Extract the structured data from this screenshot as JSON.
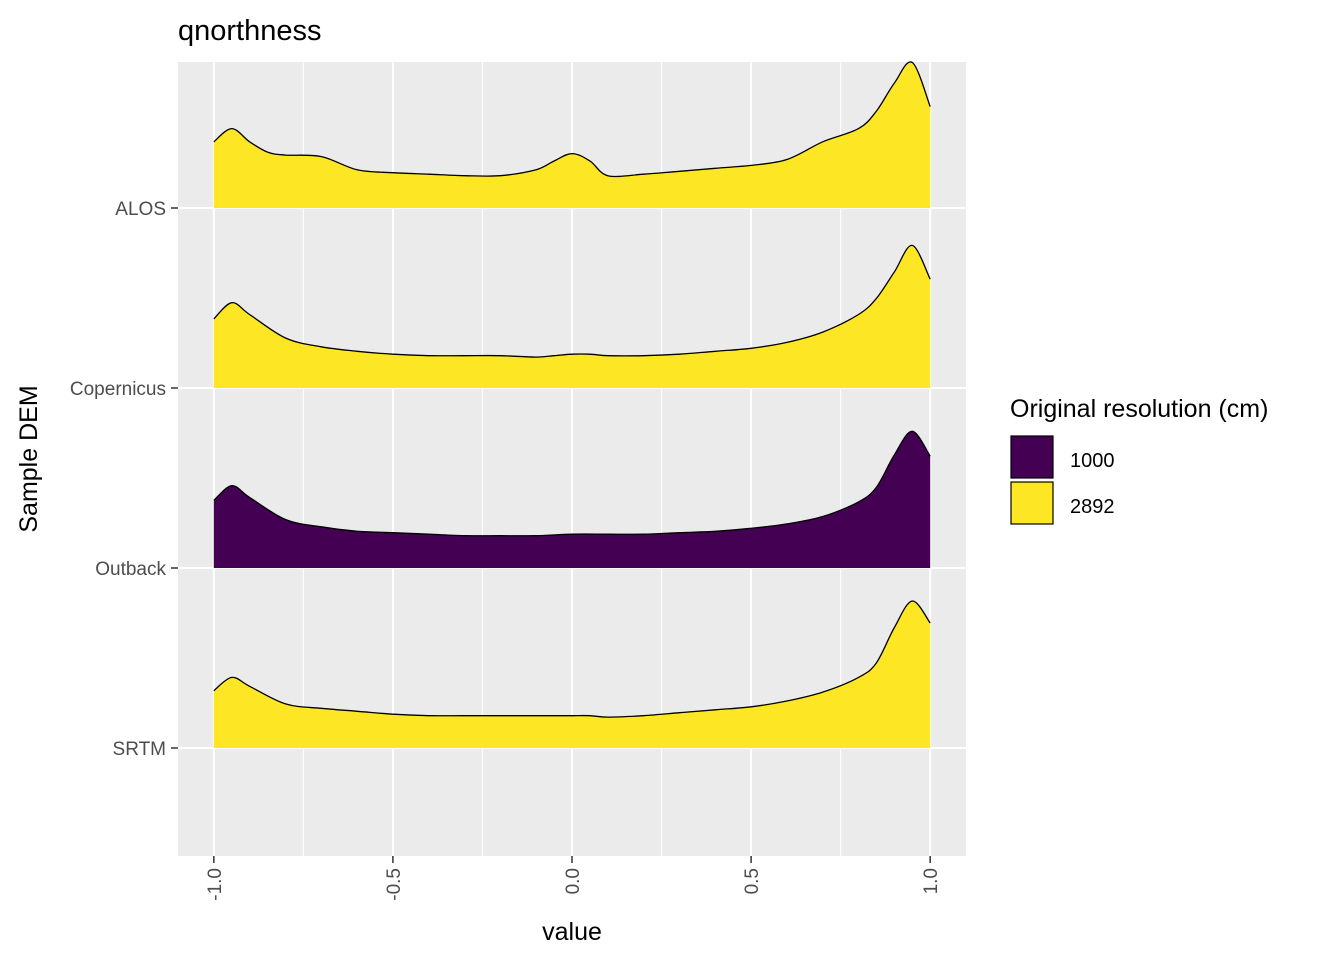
{
  "chart_data": {
    "type": "area",
    "subtype": "ridgeline-density",
    "title": "qnorthness",
    "xlabel": "value",
    "ylabel": "Sample DEM",
    "xlim": [
      -1.1,
      1.1
    ],
    "x_ticks": [
      -1.0,
      -0.5,
      0.0,
      0.5,
      1.0
    ],
    "x_tick_labels": [
      "-1.0",
      "-0.5",
      "0.0",
      "0.5",
      "1.0"
    ],
    "categories": [
      "SRTM",
      "Outback",
      "Copernicus",
      "ALOS"
    ],
    "grid": true,
    "legend": {
      "title": "Original resolution (cm)",
      "placement": "right",
      "entries": [
        {
          "label": "1000",
          "color": "#440154"
        },
        {
          "label": "2892",
          "color": "#FDE725"
        }
      ]
    },
    "series": [
      {
        "category": "ALOS",
        "resolution": "2892",
        "color": "#FDE725",
        "x": [
          -1.0,
          -0.95,
          -0.9,
          -0.85,
          -0.8,
          -0.7,
          -0.6,
          -0.5,
          -0.4,
          -0.3,
          -0.2,
          -0.1,
          -0.05,
          0.0,
          0.05,
          0.1,
          0.2,
          0.3,
          0.4,
          0.5,
          0.6,
          0.7,
          0.8,
          0.85,
          0.9,
          0.95,
          1.0
        ],
        "y": [
          0.45,
          0.54,
          0.45,
          0.38,
          0.36,
          0.35,
          0.26,
          0.24,
          0.23,
          0.22,
          0.22,
          0.26,
          0.32,
          0.37,
          0.32,
          0.22,
          0.23,
          0.25,
          0.27,
          0.29,
          0.33,
          0.45,
          0.54,
          0.66,
          0.85,
          0.99,
          0.69
        ]
      },
      {
        "category": "Copernicus",
        "resolution": "2892",
        "color": "#FDE725",
        "x": [
          -1.0,
          -0.95,
          -0.9,
          -0.8,
          -0.7,
          -0.6,
          -0.5,
          -0.4,
          -0.3,
          -0.2,
          -0.1,
          -0.05,
          0.0,
          0.05,
          0.1,
          0.2,
          0.3,
          0.4,
          0.5,
          0.6,
          0.7,
          0.8,
          0.85,
          0.9,
          0.95,
          1.0
        ],
        "y": [
          0.47,
          0.58,
          0.5,
          0.34,
          0.28,
          0.25,
          0.23,
          0.22,
          0.22,
          0.22,
          0.21,
          0.22,
          0.23,
          0.23,
          0.22,
          0.22,
          0.23,
          0.25,
          0.27,
          0.31,
          0.38,
          0.5,
          0.61,
          0.79,
          0.97,
          0.74
        ]
      },
      {
        "category": "Outback",
        "resolution": "1000",
        "color": "#440154",
        "x": [
          -1.0,
          -0.95,
          -0.9,
          -0.8,
          -0.7,
          -0.6,
          -0.5,
          -0.4,
          -0.3,
          -0.2,
          -0.1,
          0.0,
          0.1,
          0.2,
          0.3,
          0.4,
          0.5,
          0.6,
          0.7,
          0.8,
          0.85,
          0.9,
          0.95,
          1.0
        ],
        "y": [
          0.46,
          0.56,
          0.48,
          0.33,
          0.28,
          0.25,
          0.24,
          0.23,
          0.22,
          0.22,
          0.22,
          0.23,
          0.23,
          0.23,
          0.24,
          0.25,
          0.27,
          0.3,
          0.35,
          0.45,
          0.55,
          0.77,
          0.93,
          0.76
        ]
      },
      {
        "category": "SRTM",
        "resolution": "2892",
        "color": "#FDE725",
        "x": [
          -1.0,
          -0.95,
          -0.9,
          -0.8,
          -0.7,
          -0.6,
          -0.5,
          -0.4,
          -0.3,
          -0.2,
          -0.1,
          -0.05,
          0.0,
          0.05,
          0.1,
          0.2,
          0.3,
          0.4,
          0.5,
          0.6,
          0.7,
          0.8,
          0.85,
          0.9,
          0.95,
          1.0
        ],
        "y": [
          0.39,
          0.48,
          0.42,
          0.3,
          0.27,
          0.25,
          0.23,
          0.22,
          0.22,
          0.22,
          0.22,
          0.22,
          0.22,
          0.22,
          0.21,
          0.22,
          0.24,
          0.26,
          0.28,
          0.32,
          0.38,
          0.48,
          0.58,
          0.82,
          1.0,
          0.85
        ]
      }
    ]
  }
}
